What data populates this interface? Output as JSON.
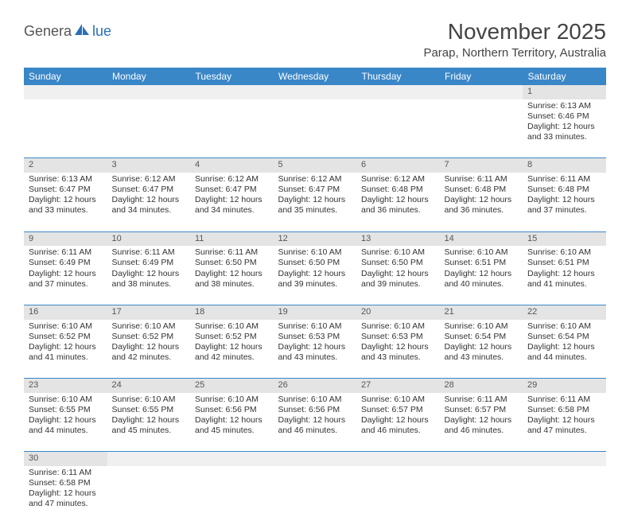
{
  "logo": {
    "text1": "Genera",
    "text2": "lue"
  },
  "title": "November 2025",
  "location": "Parap, Northern Territory, Australia",
  "header_bg": "#3a87c8",
  "days": [
    "Sunday",
    "Monday",
    "Tuesday",
    "Wednesday",
    "Thursday",
    "Friday",
    "Saturday"
  ],
  "weeks": [
    {
      "nums": [
        "",
        "",
        "",
        "",
        "",
        "",
        "1"
      ],
      "cells": [
        [],
        [],
        [],
        [],
        [],
        [],
        [
          "Sunrise: 6:13 AM",
          "Sunset: 6:46 PM",
          "Daylight: 12 hours",
          "and 33 minutes."
        ]
      ]
    },
    {
      "nums": [
        "2",
        "3",
        "4",
        "5",
        "6",
        "7",
        "8"
      ],
      "cells": [
        [
          "Sunrise: 6:13 AM",
          "Sunset: 6:47 PM",
          "Daylight: 12 hours",
          "and 33 minutes."
        ],
        [
          "Sunrise: 6:12 AM",
          "Sunset: 6:47 PM",
          "Daylight: 12 hours",
          "and 34 minutes."
        ],
        [
          "Sunrise: 6:12 AM",
          "Sunset: 6:47 PM",
          "Daylight: 12 hours",
          "and 34 minutes."
        ],
        [
          "Sunrise: 6:12 AM",
          "Sunset: 6:47 PM",
          "Daylight: 12 hours",
          "and 35 minutes."
        ],
        [
          "Sunrise: 6:12 AM",
          "Sunset: 6:48 PM",
          "Daylight: 12 hours",
          "and 36 minutes."
        ],
        [
          "Sunrise: 6:11 AM",
          "Sunset: 6:48 PM",
          "Daylight: 12 hours",
          "and 36 minutes."
        ],
        [
          "Sunrise: 6:11 AM",
          "Sunset: 6:48 PM",
          "Daylight: 12 hours",
          "and 37 minutes."
        ]
      ]
    },
    {
      "nums": [
        "9",
        "10",
        "11",
        "12",
        "13",
        "14",
        "15"
      ],
      "cells": [
        [
          "Sunrise: 6:11 AM",
          "Sunset: 6:49 PM",
          "Daylight: 12 hours",
          "and 37 minutes."
        ],
        [
          "Sunrise: 6:11 AM",
          "Sunset: 6:49 PM",
          "Daylight: 12 hours",
          "and 38 minutes."
        ],
        [
          "Sunrise: 6:11 AM",
          "Sunset: 6:50 PM",
          "Daylight: 12 hours",
          "and 38 minutes."
        ],
        [
          "Sunrise: 6:10 AM",
          "Sunset: 6:50 PM",
          "Daylight: 12 hours",
          "and 39 minutes."
        ],
        [
          "Sunrise: 6:10 AM",
          "Sunset: 6:50 PM",
          "Daylight: 12 hours",
          "and 39 minutes."
        ],
        [
          "Sunrise: 6:10 AM",
          "Sunset: 6:51 PM",
          "Daylight: 12 hours",
          "and 40 minutes."
        ],
        [
          "Sunrise: 6:10 AM",
          "Sunset: 6:51 PM",
          "Daylight: 12 hours",
          "and 41 minutes."
        ]
      ]
    },
    {
      "nums": [
        "16",
        "17",
        "18",
        "19",
        "20",
        "21",
        "22"
      ],
      "cells": [
        [
          "Sunrise: 6:10 AM",
          "Sunset: 6:52 PM",
          "Daylight: 12 hours",
          "and 41 minutes."
        ],
        [
          "Sunrise: 6:10 AM",
          "Sunset: 6:52 PM",
          "Daylight: 12 hours",
          "and 42 minutes."
        ],
        [
          "Sunrise: 6:10 AM",
          "Sunset: 6:52 PM",
          "Daylight: 12 hours",
          "and 42 minutes."
        ],
        [
          "Sunrise: 6:10 AM",
          "Sunset: 6:53 PM",
          "Daylight: 12 hours",
          "and 43 minutes."
        ],
        [
          "Sunrise: 6:10 AM",
          "Sunset: 6:53 PM",
          "Daylight: 12 hours",
          "and 43 minutes."
        ],
        [
          "Sunrise: 6:10 AM",
          "Sunset: 6:54 PM",
          "Daylight: 12 hours",
          "and 43 minutes."
        ],
        [
          "Sunrise: 6:10 AM",
          "Sunset: 6:54 PM",
          "Daylight: 12 hours",
          "and 44 minutes."
        ]
      ]
    },
    {
      "nums": [
        "23",
        "24",
        "25",
        "26",
        "27",
        "28",
        "29"
      ],
      "cells": [
        [
          "Sunrise: 6:10 AM",
          "Sunset: 6:55 PM",
          "Daylight: 12 hours",
          "and 44 minutes."
        ],
        [
          "Sunrise: 6:10 AM",
          "Sunset: 6:55 PM",
          "Daylight: 12 hours",
          "and 45 minutes."
        ],
        [
          "Sunrise: 6:10 AM",
          "Sunset: 6:56 PM",
          "Daylight: 12 hours",
          "and 45 minutes."
        ],
        [
          "Sunrise: 6:10 AM",
          "Sunset: 6:56 PM",
          "Daylight: 12 hours",
          "and 46 minutes."
        ],
        [
          "Sunrise: 6:10 AM",
          "Sunset: 6:57 PM",
          "Daylight: 12 hours",
          "and 46 minutes."
        ],
        [
          "Sunrise: 6:11 AM",
          "Sunset: 6:57 PM",
          "Daylight: 12 hours",
          "and 46 minutes."
        ],
        [
          "Sunrise: 6:11 AM",
          "Sunset: 6:58 PM",
          "Daylight: 12 hours",
          "and 47 minutes."
        ]
      ]
    },
    {
      "nums": [
        "30",
        "",
        "",
        "",
        "",
        "",
        ""
      ],
      "cells": [
        [
          "Sunrise: 6:11 AM",
          "Sunset: 6:58 PM",
          "Daylight: 12 hours",
          "and 47 minutes."
        ],
        [],
        [],
        [],
        [],
        [],
        []
      ]
    }
  ]
}
